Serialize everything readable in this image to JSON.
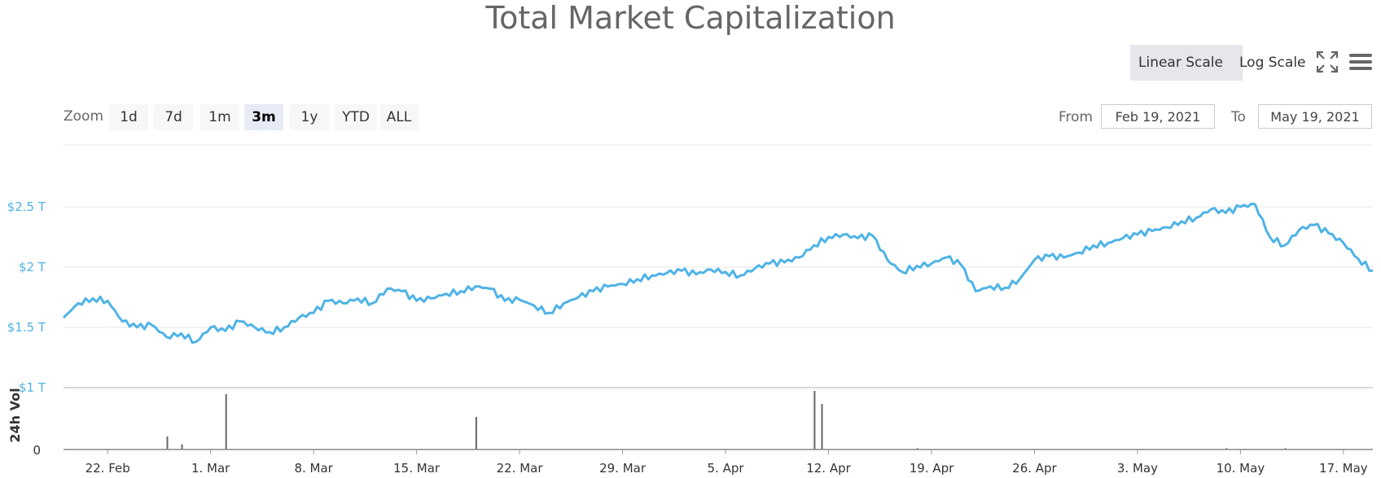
{
  "title": "Total Market Capitalization",
  "scale_buttons": {
    "linear": "Linear Scale",
    "log": "Log Scale",
    "active": "linear"
  },
  "icons": {
    "fullscreen": "fullscreen-icon",
    "menu": "hamburger-menu-icon"
  },
  "zoom": {
    "label": "Zoom",
    "options": [
      "1d",
      "7d",
      "1m",
      "3m",
      "1y",
      "YTD",
      "ALL"
    ],
    "active": "3m"
  },
  "range": {
    "from_label": "From",
    "from_value": "Feb 19, 2021",
    "to_label": "To",
    "to_value": "May 19, 2021"
  },
  "colors": {
    "line": "#4fb3e6",
    "volume": "#666666",
    "grid": "#e6e6e6",
    "active_button": "#e6ebf5"
  },
  "chart_data": {
    "type": "line",
    "title": "Total Market Capitalization",
    "x_range": [
      "2021-02-19",
      "2021-05-19"
    ],
    "x_ticks": [
      "22. Feb",
      "1. Mar",
      "8. Mar",
      "15. Mar",
      "22. Mar",
      "29. Mar",
      "5. Apr",
      "12. Apr",
      "19. Apr",
      "26. Apr",
      "3. May",
      "10. May",
      "17. May"
    ],
    "y_ticks": [
      "$1 T",
      "$1.5 T",
      "$2 T",
      "$2.5 T"
    ],
    "ylim": [
      1.0,
      2.9
    ],
    "grid": true,
    "series": [
      {
        "unit": "trillion USD",
        "x": [
          "2021-02-19",
          "2021-02-20",
          "2021-02-21",
          "2021-02-22",
          "2021-02-23",
          "2021-02-24",
          "2021-02-25",
          "2021-02-26",
          "2021-02-27",
          "2021-02-28",
          "2021-03-01",
          "2021-03-02",
          "2021-03-03",
          "2021-03-04",
          "2021-03-05",
          "2021-03-06",
          "2021-03-07",
          "2021-03-08",
          "2021-03-09",
          "2021-03-10",
          "2021-03-11",
          "2021-03-12",
          "2021-03-13",
          "2021-03-14",
          "2021-03-15",
          "2021-03-16",
          "2021-03-17",
          "2021-03-18",
          "2021-03-19",
          "2021-03-20",
          "2021-03-21",
          "2021-03-22",
          "2021-03-23",
          "2021-03-24",
          "2021-03-25",
          "2021-03-26",
          "2021-03-27",
          "2021-03-28",
          "2021-03-29",
          "2021-03-30",
          "2021-03-31",
          "2021-04-01",
          "2021-04-02",
          "2021-04-03",
          "2021-04-04",
          "2021-04-05",
          "2021-04-06",
          "2021-04-07",
          "2021-04-08",
          "2021-04-09",
          "2021-04-10",
          "2021-04-11",
          "2021-04-12",
          "2021-04-13",
          "2021-04-14",
          "2021-04-15",
          "2021-04-16",
          "2021-04-17",
          "2021-04-18",
          "2021-04-19",
          "2021-04-20",
          "2021-04-21",
          "2021-04-22",
          "2021-04-23",
          "2021-04-24",
          "2021-04-25",
          "2021-04-26",
          "2021-04-27",
          "2021-04-28",
          "2021-04-29",
          "2021-04-30",
          "2021-05-01",
          "2021-05-02",
          "2021-05-03",
          "2021-05-04",
          "2021-05-05",
          "2021-05-06",
          "2021-05-07",
          "2021-05-08",
          "2021-05-09",
          "2021-05-10",
          "2021-05-11",
          "2021-05-12",
          "2021-05-13",
          "2021-05-14",
          "2021-05-15",
          "2021-05-16",
          "2021-05-17",
          "2021-05-18",
          "2021-05-19"
        ],
        "values": [
          1.58,
          1.7,
          1.74,
          1.72,
          1.55,
          1.5,
          1.52,
          1.42,
          1.45,
          1.38,
          1.5,
          1.47,
          1.55,
          1.5,
          1.46,
          1.5,
          1.58,
          1.62,
          1.72,
          1.7,
          1.74,
          1.7,
          1.82,
          1.8,
          1.72,
          1.74,
          1.78,
          1.8,
          1.84,
          1.82,
          1.72,
          1.73,
          1.68,
          1.62,
          1.7,
          1.75,
          1.8,
          1.84,
          1.86,
          1.9,
          1.93,
          1.95,
          1.97,
          1.94,
          1.98,
          1.96,
          1.93,
          1.99,
          2.03,
          2.04,
          2.08,
          2.18,
          2.25,
          2.27,
          2.24,
          2.26,
          2.06,
          1.96,
          2.01,
          2.03,
          2.08,
          2.02,
          1.8,
          1.84,
          1.83,
          1.9,
          2.06,
          2.09,
          2.08,
          2.12,
          2.18,
          2.2,
          2.24,
          2.27,
          2.3,
          2.33,
          2.38,
          2.41,
          2.48,
          2.45,
          2.5,
          2.52,
          2.25,
          2.18,
          2.31,
          2.35,
          2.28,
          2.2,
          2.07,
          1.97
        ]
      },
      {
        "name": "24h Vol",
        "x": [
          "2021-02-26",
          "2021-02-27",
          "2021-03-02",
          "2021-03-19",
          "2021-04-11",
          "2021-04-11T12",
          "2021-04-18",
          "2021-05-09",
          "2021-05-13"
        ],
        "values": [
          0.2,
          0.08,
          0.85,
          0.5,
          0.9,
          0.7,
          0.02,
          0.02,
          0.02
        ]
      }
    ]
  }
}
